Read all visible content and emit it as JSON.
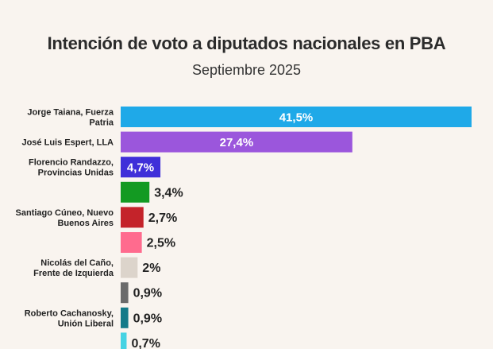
{
  "chart_data": {
    "type": "bar",
    "orientation": "horizontal",
    "title": "Intención de voto a diputados nacionales en PBA",
    "subtitle": "Septiembre 2025",
    "xlabel": "",
    "ylabel": "",
    "xlim": [
      0,
      41.5
    ],
    "grid": false,
    "legend": "none",
    "bars": [
      {
        "label": "Jorge Taiana, Fuerza Patria",
        "value": 41.5,
        "display": "41,5%",
        "color": "#1fa9e8",
        "label_position": "inside"
      },
      {
        "label": "José Luis Espert, LLA",
        "value": 27.4,
        "display": "27,4%",
        "color": "#9b56dc",
        "label_position": "inside"
      },
      {
        "label": "Florencio Randazzo, Provincias Unidas",
        "value": 4.7,
        "display": "4,7%",
        "color": "#3f2fd9",
        "label_position": "inside"
      },
      {
        "label": "",
        "value": 3.4,
        "display": "3,4%",
        "color": "#139a22",
        "label_position": "outside"
      },
      {
        "label": "Santiago Cúneo, Nuevo Buenos Aires",
        "value": 2.7,
        "display": "2,7%",
        "color": "#c4232a",
        "label_position": "outside"
      },
      {
        "label": "",
        "value": 2.5,
        "display": "2,5%",
        "color": "#ff6b8e",
        "label_position": "outside"
      },
      {
        "label": "Nicolás del Caño, Frente de Izquierda",
        "value": 2.0,
        "display": "2%",
        "color": "#dcd4cb",
        "label_position": "outside"
      },
      {
        "label": "",
        "value": 0.9,
        "display": "0,9%",
        "color": "#6b6b6b",
        "label_position": "outside"
      },
      {
        "label": "Roberto Cachanosky, Unión Liberal",
        "value": 0.9,
        "display": "0,9%",
        "color": "#147a89",
        "label_position": "outside"
      },
      {
        "label": "",
        "value": 0.7,
        "display": "0,7%",
        "color": "#46d3e3",
        "label_position": "outside"
      }
    ]
  }
}
